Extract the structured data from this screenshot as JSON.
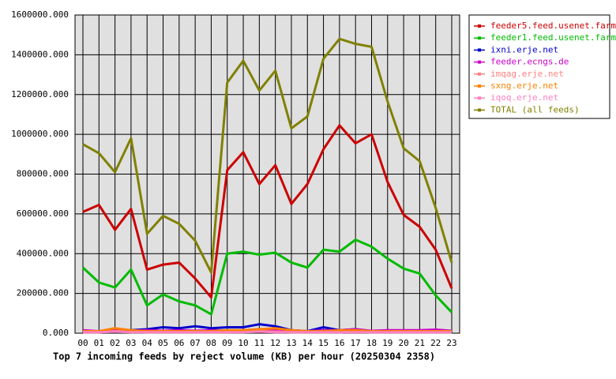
{
  "chart_data": {
    "type": "line",
    "title": "Top 7 incoming feeds by reject volume (KB) per hour (20250304 2358)",
    "categories": [
      "00",
      "01",
      "02",
      "03",
      "04",
      "05",
      "06",
      "07",
      "08",
      "09",
      "10",
      "11",
      "12",
      "13",
      "14",
      "15",
      "16",
      "17",
      "18",
      "19",
      "20",
      "21",
      "22",
      "23"
    ],
    "ylim": [
      0,
      1600000
    ],
    "yticks": [
      {
        "value": 0,
        "label": "0.000"
      },
      {
        "value": 200000,
        "label": "200000.000"
      },
      {
        "value": 400000,
        "label": "400000.000"
      },
      {
        "value": 600000,
        "label": "600000.000"
      },
      {
        "value": 800000,
        "label": "800000.000"
      },
      {
        "value": 1000000,
        "label": "1000000.000"
      },
      {
        "value": 1200000,
        "label": "1200000.000"
      },
      {
        "value": 1400000,
        "label": "1400000.000"
      },
      {
        "value": 1600000,
        "label": "1600000.000"
      }
    ],
    "grid": true,
    "series": [
      {
        "name": "feeder5.feed.usenet.farm",
        "color": "#cc0000",
        "values": [
          610000,
          645000,
          520000,
          625000,
          320000,
          345000,
          355000,
          275000,
          180000,
          820000,
          910000,
          750000,
          845000,
          650000,
          750000,
          925000,
          1045000,
          955000,
          1000000,
          760000,
          595000,
          535000,
          420000,
          225000
        ]
      },
      {
        "name": "feeder1.feed.usenet.farm",
        "color": "#00bb00",
        "values": [
          330000,
          255000,
          230000,
          320000,
          140000,
          195000,
          160000,
          140000,
          95000,
          400000,
          410000,
          395000,
          405000,
          355000,
          330000,
          420000,
          410000,
          470000,
          435000,
          375000,
          325000,
          300000,
          190000,
          105000
        ]
      },
      {
        "name": "ixni.erje.net",
        "color": "#0000cc",
        "values": [
          10000,
          5000,
          15000,
          15000,
          20000,
          30000,
          25000,
          35000,
          25000,
          30000,
          30000,
          45000,
          35000,
          15000,
          10000,
          30000,
          15000,
          20000,
          10000,
          10000,
          10000,
          10000,
          10000,
          10000
        ]
      },
      {
        "name": "feeder.ecngs.de",
        "color": "#cc00cc",
        "values": [
          15000,
          10000,
          15000,
          12000,
          15000,
          12000,
          15000,
          12000,
          15000,
          12000,
          15000,
          20000,
          20000,
          15000,
          10000,
          15000,
          15000,
          20000,
          12000,
          15000,
          15000,
          15000,
          18000,
          12000
        ]
      },
      {
        "name": "imqag.erje.net",
        "color": "#ff8080",
        "values": [
          5000,
          5000,
          10000,
          8000,
          5000,
          5000,
          5000,
          5000,
          5000,
          5000,
          8000,
          10000,
          8000,
          5000,
          5000,
          5000,
          5000,
          8000,
          5000,
          5000,
          5000,
          5000,
          5000,
          5000
        ]
      },
      {
        "name": "sxng.erje.net",
        "color": "#ff8000",
        "values": [
          10000,
          10000,
          25000,
          15000,
          10000,
          10000,
          10000,
          10000,
          10000,
          15000,
          15000,
          20000,
          25000,
          15000,
          10000,
          10000,
          15000,
          15000,
          10000,
          10000,
          10000,
          10000,
          10000,
          10000
        ]
      },
      {
        "name": "iqoq.erje.net",
        "color": "#ff80c0",
        "values": [
          5000,
          5000,
          8000,
          5000,
          5000,
          5000,
          5000,
          5000,
          5000,
          5000,
          5000,
          8000,
          5000,
          5000,
          5000,
          5000,
          5000,
          5000,
          5000,
          5000,
          5000,
          5000,
          5000,
          5000
        ]
      },
      {
        "name": "TOTAL (all feeds)",
        "color": "#808000",
        "values": [
          950000,
          905000,
          810000,
          980000,
          500000,
          590000,
          550000,
          465000,
          305000,
          1260000,
          1370000,
          1220000,
          1320000,
          1030000,
          1090000,
          1380000,
          1480000,
          1455000,
          1440000,
          1165000,
          930000,
          865000,
          630000,
          355000
        ]
      }
    ]
  }
}
